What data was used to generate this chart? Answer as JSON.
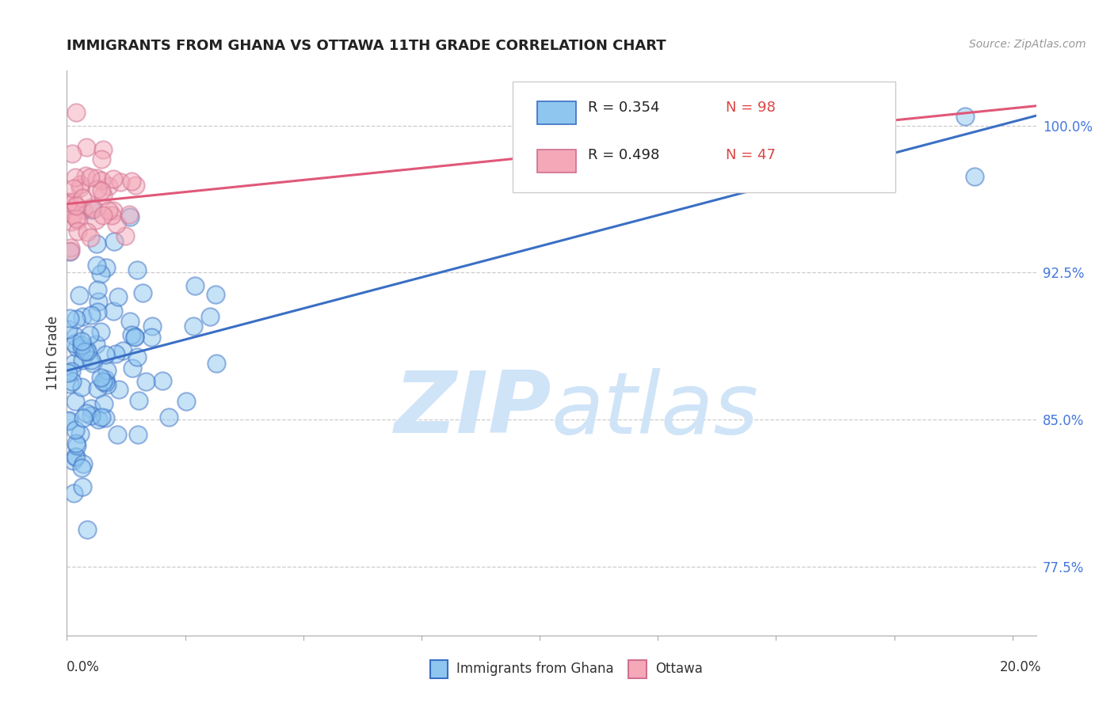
{
  "title": "IMMIGRANTS FROM GHANA VS OTTAWA 11TH GRADE CORRELATION CHART",
  "source_text": "Source: ZipAtlas.com",
  "ylabel": "11th Grade",
  "y_tick_labels": [
    "77.5%",
    "85.0%",
    "92.5%",
    "100.0%"
  ],
  "y_tick_values": [
    0.775,
    0.85,
    0.925,
    1.0
  ],
  "r_ghana": 0.354,
  "n_ghana": 98,
  "r_ottawa": 0.498,
  "n_ottawa": 47,
  "color_ghana": "#8ec6f0",
  "color_ottawa": "#f4a8b8",
  "color_ghana_line": "#3a6fc4",
  "color_ottawa_line": "#e05878",
  "color_title": "#222222",
  "color_source": "#999999",
  "color_yaxis_labels": "#4477dd",
  "color_legend_r_val": "#4477dd",
  "color_legend_n_val": "#dd4444",
  "watermark_zip": "ZIP",
  "watermark_atlas": "atlas",
  "watermark_color": "#d0e4f8",
  "background_color": "#ffffff",
  "grid_color": "#cccccc",
  "xlim": [
    0.0,
    0.205
  ],
  "ylim": [
    0.74,
    1.028
  ],
  "ghana_line_x0": 0.0,
  "ghana_line_x1": 0.205,
  "ghana_line_y0": 0.875,
  "ghana_line_y1": 1.005,
  "ottawa_line_x0": 0.0,
  "ottawa_line_x1": 0.205,
  "ottawa_line_y0": 0.96,
  "ottawa_line_y1": 1.01
}
